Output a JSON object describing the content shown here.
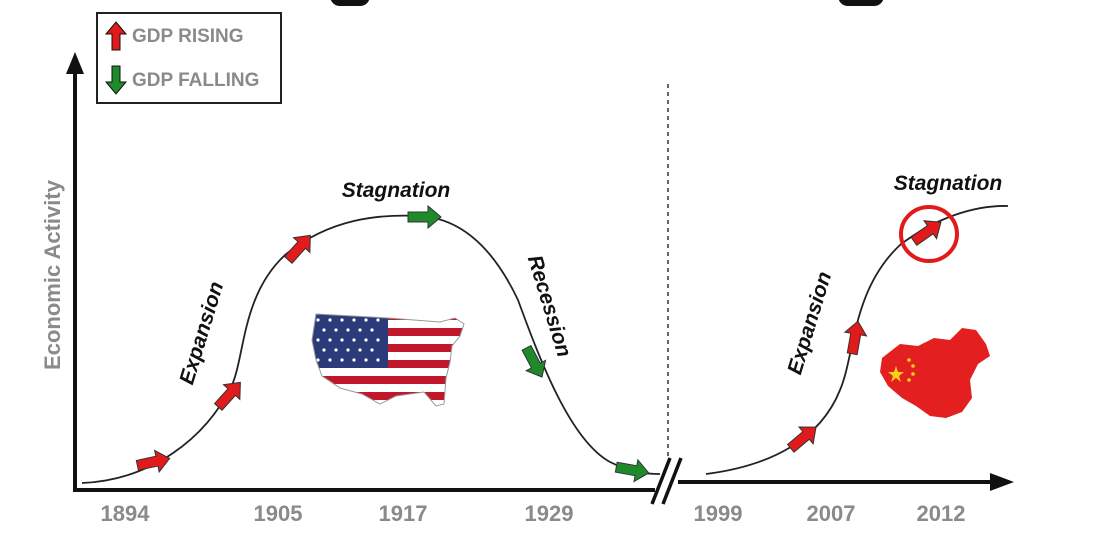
{
  "legend": {
    "rising_label": "GDP RISING",
    "falling_label": "GDP FALLING",
    "rising_color": "#e11b1b",
    "falling_color": "#1f8a2a"
  },
  "axes": {
    "y_label": "Economic Activity",
    "x_ticks_left": [
      "1894",
      "1905",
      "1917",
      "1929"
    ],
    "x_ticks_right": [
      "1999",
      "2007",
      "2012"
    ],
    "axis_color": "#111111",
    "label_color": "#8a8a8a"
  },
  "phases": {
    "left_expansion": "Expansion",
    "left_stagnation": "Stagnation",
    "left_recession": "Recession",
    "right_expansion": "Expansion",
    "right_stagnation": "Stagnation"
  },
  "markers": {
    "left": [
      "rising",
      "rising",
      "rising",
      "falling",
      "falling",
      "falling"
    ],
    "right": [
      "rising",
      "rising",
      "rising-circled"
    ]
  },
  "flags": {
    "left": "usa-map-flag",
    "right": "china-map-flag"
  },
  "colors": {
    "highlight_circle": "#e11b1b",
    "divider": "#333333"
  }
}
